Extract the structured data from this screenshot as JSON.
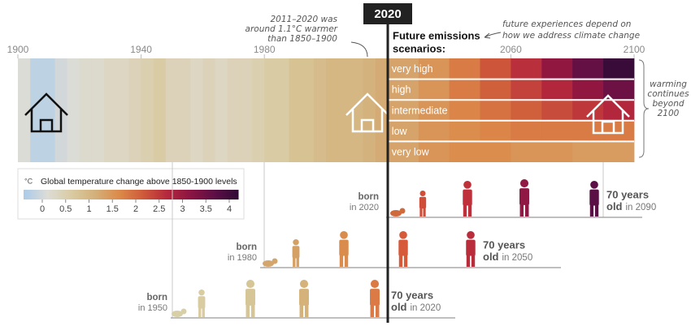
{
  "header": {
    "now": 2020,
    "note": [
      "2011–2020 was",
      "around 1.1°C warmer",
      "than 1850–1900"
    ],
    "scenarios_title": [
      "Future emissions",
      "scenarios:"
    ],
    "future_note": [
      "future experiences depend on",
      "how we address climate change"
    ],
    "beyond_note": [
      "warming",
      "continues",
      "beyond",
      "2100"
    ]
  },
  "axis": {
    "lim": [
      1900,
      2100
    ],
    "ticks": [
      1900,
      1940,
      1980,
      2060,
      2100
    ]
  },
  "observed": {
    "years": [
      1900,
      1904,
      1908,
      1912,
      1916,
      1920,
      1924,
      1928,
      1932,
      1936,
      1940,
      1944,
      1948,
      1952,
      1956,
      1960,
      1964,
      1968,
      1972,
      1976,
      1980,
      1984,
      1988,
      1992,
      1996,
      2000,
      2004,
      2008,
      2012,
      2016
    ],
    "values": [
      0.1,
      -0.2,
      -0.2,
      0.0,
      0.1,
      0.2,
      0.2,
      0.3,
      0.3,
      0.4,
      0.5,
      0.6,
      0.4,
      0.4,
      0.3,
      0.4,
      0.3,
      0.4,
      0.4,
      0.5,
      0.6,
      0.6,
      0.8,
      0.8,
      0.9,
      1.0,
      1.0,
      1.0,
      1.1,
      1.2
    ]
  },
  "scenarios": [
    {
      "name": "very high",
      "years": [
        2020,
        2030,
        2040,
        2050,
        2060,
        2070,
        2080,
        2090
      ],
      "values": [
        1.3,
        1.5,
        1.8,
        2.2,
        2.6,
        3.1,
        3.6,
        4.1
      ]
    },
    {
      "name": "high",
      "years": [
        2020,
        2030,
        2040,
        2050,
        2060,
        2070,
        2080,
        2090
      ],
      "values": [
        1.3,
        1.5,
        1.8,
        2.1,
        2.4,
        2.7,
        3.1,
        3.5
      ]
    },
    {
      "name": "intermediate",
      "years": [
        2020,
        2030,
        2040,
        2050,
        2060,
        2070,
        2080,
        2090
      ],
      "values": [
        1.3,
        1.5,
        1.7,
        1.9,
        2.1,
        2.3,
        2.5,
        2.7
      ]
    },
    {
      "name": "low",
      "years": [
        2020,
        2030,
        2040,
        2050,
        2060,
        2070,
        2080,
        2090
      ],
      "values": [
        1.3,
        1.5,
        1.6,
        1.7,
        1.8,
        1.8,
        1.8,
        1.8
      ]
    },
    {
      "name": "very low",
      "years": [
        2020,
        2030,
        2040,
        2050,
        2060,
        2070,
        2080,
        2090
      ],
      "values": [
        1.3,
        1.5,
        1.6,
        1.6,
        1.5,
        1.5,
        1.4,
        1.4
      ]
    }
  ],
  "legend": {
    "unit": "°C",
    "title": "Global temperature change above 1850-1900 levels",
    "lim": [
      -0.4,
      4.2
    ],
    "ticks": [
      0,
      0.5,
      1,
      1.5,
      2,
      2.5,
      3,
      3.5,
      4
    ],
    "colors": [
      "#a9cbe9",
      "#dddcd6",
      "#d9cba2",
      "#d3b07a",
      "#dc8a4a",
      "#cf5a3a",
      "#b6283c",
      "#8a1442",
      "#5c0f46",
      "#2f0a34"
    ]
  },
  "generations": [
    {
      "born": "born",
      "year": "in 2020",
      "age": "70 years",
      "old": "old",
      "old_year": "in 2090"
    },
    {
      "born": "born",
      "year": "in 1980",
      "age": "70 years",
      "old": "old",
      "old_year": "in 2050"
    },
    {
      "born": "born",
      "year": "in 1950",
      "age": "70 years",
      "old": "old",
      "old_year": "in 2020"
    }
  ]
}
